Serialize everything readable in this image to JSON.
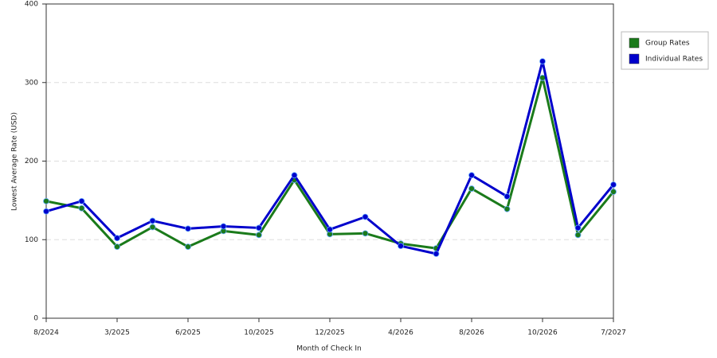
{
  "chart_data": {
    "type": "line",
    "x_label": "Month of Check In",
    "y_label": "Lowest Average Rate (USD)",
    "categories": [
      "8/2024",
      null,
      "3/2025",
      null,
      "6/2025",
      null,
      "10/2025",
      null,
      "12/2025",
      null,
      "4/2026",
      null,
      "8/2026",
      null,
      "10/2026",
      null,
      "7/2027"
    ],
    "series": [
      {
        "name": "Group Rates",
        "color": "#1a7a1a",
        "values": [
          149,
          140,
          91,
          116,
          91,
          111,
          106,
          176,
          107,
          108,
          95,
          89,
          165,
          139,
          306,
          106,
          161
        ]
      },
      {
        "name": "Individual Rates",
        "color": "#0000cc",
        "values": [
          136,
          149,
          102,
          124,
          114,
          117,
          115,
          182,
          113,
          129,
          92,
          82,
          182,
          155,
          327,
          115,
          170
        ]
      }
    ],
    "ylim": [
      0,
      400
    ],
    "yticks": [
      0,
      100,
      200,
      300,
      400
    ],
    "grid": true,
    "legend": "right"
  }
}
